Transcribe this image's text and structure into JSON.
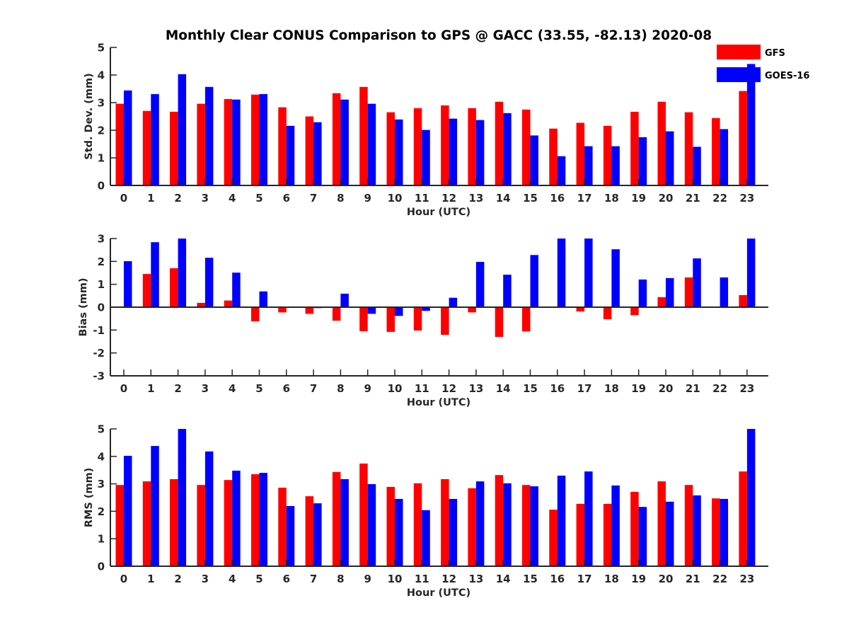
{
  "title": "Monthly Clear CONUS Comparison to GPS @ GACC (33.55, -82.13) 2020-08",
  "legend": [
    {
      "name": "GFS",
      "color": "#ff0000"
    },
    {
      "name": "GOES-16",
      "color": "#0000ff"
    }
  ],
  "chart_data": [
    {
      "type": "bar",
      "title": "Monthly Clear CONUS Comparison to GPS @ GACC (33.55, -82.13) 2020-08",
      "xlabel": "Hour (UTC)",
      "ylabel": "Std. Dev. (mm)",
      "ylim": [
        0,
        5
      ],
      "yticks": [
        "0",
        "1",
        "2",
        "3",
        "4",
        "5"
      ],
      "categories": [
        "0",
        "1",
        "2",
        "3",
        "4",
        "5",
        "6",
        "7",
        "8",
        "9",
        "10",
        "11",
        "12",
        "13",
        "14",
        "15",
        "16",
        "17",
        "18",
        "19",
        "20",
        "21",
        "22",
        "23"
      ],
      "legend_position": "top-right",
      "series": [
        {
          "name": "GFS",
          "color": "#ff0000",
          "values": [
            2.96,
            2.7,
            2.67,
            2.96,
            3.13,
            3.29,
            2.83,
            2.5,
            3.34,
            3.57,
            2.65,
            2.8,
            2.9,
            2.8,
            3.03,
            2.75,
            2.06,
            2.27,
            2.16,
            2.67,
            3.03,
            2.65,
            2.44,
            3.42
          ]
        },
        {
          "name": "GOES-16",
          "color": "#0000ff",
          "values": [
            3.44,
            3.31,
            4.03,
            3.57,
            3.11,
            3.31,
            2.16,
            2.29,
            3.11,
            2.96,
            2.39,
            2.01,
            2.42,
            2.37,
            2.62,
            1.81,
            1.06,
            1.42,
            1.42,
            1.75,
            1.96,
            1.4,
            2.04,
            4.4
          ]
        }
      ]
    },
    {
      "type": "bar",
      "title": "",
      "xlabel": "Hour (UTC)",
      "ylabel": "Bias (mm)",
      "ylim": [
        -3,
        3
      ],
      "yticks": [
        "-3",
        "-2",
        "-1",
        "0",
        "1",
        "2",
        "3"
      ],
      "categories": [
        "0",
        "1",
        "2",
        "3",
        "4",
        "5",
        "6",
        "7",
        "8",
        "9",
        "10",
        "11",
        "12",
        "13",
        "14",
        "15",
        "16",
        "17",
        "18",
        "19",
        "20",
        "21",
        "22",
        "23"
      ],
      "series": [
        {
          "name": "GFS",
          "color": "#ff0000",
          "values": [
            0.0,
            1.45,
            1.7,
            0.19,
            0.29,
            -0.62,
            -0.23,
            -0.29,
            -0.59,
            -1.05,
            -1.08,
            -1.02,
            -1.21,
            -0.23,
            -1.3,
            -1.06,
            0.0,
            -0.19,
            -0.53,
            -0.35,
            0.44,
            1.3,
            0.02,
            0.53
          ]
        },
        {
          "name": "GOES-16",
          "color": "#0000ff",
          "values": [
            2.01,
            2.84,
            3.0,
            2.16,
            1.51,
            0.69,
            0.03,
            -0.04,
            0.59,
            -0.29,
            -0.38,
            -0.16,
            0.41,
            1.98,
            1.42,
            2.28,
            3.0,
            3.0,
            2.53,
            1.21,
            1.27,
            2.13,
            1.3,
            3.0
          ]
        }
      ]
    },
    {
      "type": "bar",
      "title": "",
      "xlabel": "Hour (UTC)",
      "ylabel": "RMS (mm)",
      "ylim": [
        0,
        5
      ],
      "yticks": [
        "0",
        "1",
        "2",
        "3",
        "4",
        "5"
      ],
      "categories": [
        "0",
        "1",
        "2",
        "3",
        "4",
        "5",
        "6",
        "7",
        "8",
        "9",
        "10",
        "11",
        "12",
        "13",
        "14",
        "15",
        "16",
        "17",
        "18",
        "19",
        "20",
        "21",
        "22",
        "23"
      ],
      "series": [
        {
          "name": "GFS",
          "color": "#ff0000",
          "values": [
            2.96,
            3.09,
            3.17,
            2.96,
            3.14,
            3.35,
            2.86,
            2.55,
            3.43,
            3.74,
            2.89,
            3.02,
            3.17,
            2.84,
            3.32,
            2.96,
            2.06,
            2.27,
            2.27,
            2.71,
            3.09,
            2.96,
            2.47,
            3.45
          ]
        },
        {
          "name": "GOES-16",
          "color": "#0000ff",
          "values": [
            4.02,
            4.38,
            5.0,
            4.18,
            3.48,
            3.4,
            2.19,
            2.29,
            3.17,
            2.99,
            2.45,
            2.04,
            2.45,
            3.09,
            3.02,
            2.91,
            3.3,
            3.45,
            2.94,
            2.16,
            2.35,
            2.58,
            2.45,
            5.0
          ]
        }
      ]
    }
  ]
}
